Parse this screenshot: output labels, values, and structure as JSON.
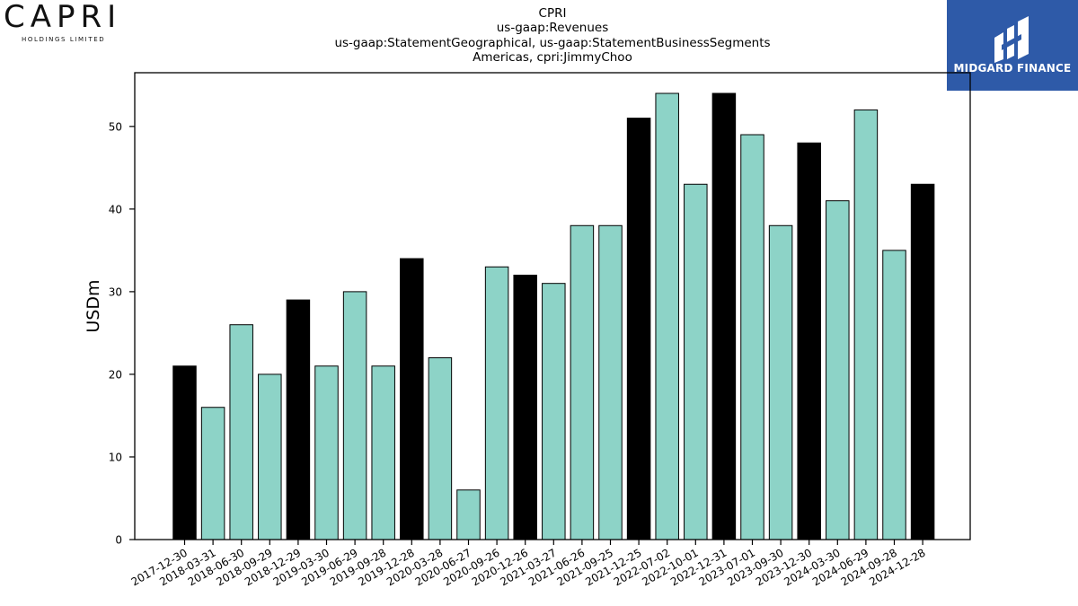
{
  "logos": {
    "capri": {
      "wordmark": "CAPRI",
      "subtitle": "HOLDINGS LIMITED"
    },
    "midgard": {
      "text": "MIDGARD FINANCE",
      "bg_color": "#2e5aa8"
    }
  },
  "title_lines": [
    "CPRI",
    "us-gaap:Revenues",
    "us-gaap:StatementGeographical, us-gaap:StatementBusinessSegments",
    "Americas, cpri:JimmyChoo"
  ],
  "chart_data": {
    "type": "bar",
    "ylabel": "USDm",
    "xlabel": "",
    "ylim": [
      0,
      56.5
    ],
    "yticks": [
      0,
      10,
      20,
      30,
      40,
      50
    ],
    "grid": false,
    "colors": {
      "highlight": "#000000",
      "normal": "#8dd3c7"
    },
    "categories": [
      "2017-12-30",
      "2018-03-31",
      "2018-06-30",
      "2018-09-29",
      "2018-12-29",
      "2019-03-30",
      "2019-06-29",
      "2019-09-28",
      "2019-12-28",
      "2020-03-28",
      "2020-06-27",
      "2020-09-26",
      "2020-12-26",
      "2021-03-27",
      "2021-06-26",
      "2021-09-25",
      "2021-12-25",
      "2022-07-02",
      "2022-10-01",
      "2022-12-31",
      "2023-07-01",
      "2023-09-30",
      "2023-12-30",
      "2024-03-30",
      "2024-06-29",
      "2024-09-28",
      "2024-12-28"
    ],
    "values": [
      21,
      16,
      26,
      20,
      29,
      21,
      30,
      21,
      34,
      22,
      6,
      33,
      32,
      31,
      38,
      38,
      51,
      54,
      43,
      54,
      49,
      38,
      48,
      41,
      52,
      35,
      43
    ],
    "highlighted": [
      true,
      false,
      false,
      false,
      true,
      false,
      false,
      false,
      true,
      false,
      false,
      false,
      true,
      false,
      false,
      false,
      true,
      false,
      false,
      true,
      false,
      false,
      true,
      false,
      false,
      false,
      true
    ]
  }
}
